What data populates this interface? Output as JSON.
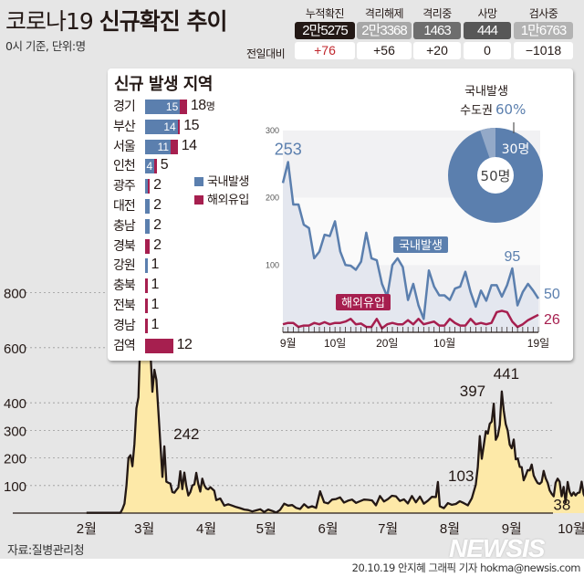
{
  "header": {
    "title_regular": "코로나19 ",
    "title_bold": "신규확진 추이",
    "subtitle": "0시 기준, 단위:명",
    "diff_label": "전일대비",
    "stats": [
      {
        "label": "누적확진",
        "value": "2만5275",
        "diff": "+76",
        "color": "#231815",
        "diff_color": "#c0272d"
      },
      {
        "label": "격리해제",
        "value": "2만3368",
        "diff": "+56",
        "color": "#a7a7a7",
        "diff_color": "#231815"
      },
      {
        "label": "격리중",
        "value": "1463",
        "diff": "+20",
        "color": "#6e6e6e",
        "diff_color": "#231815"
      },
      {
        "label": "사망",
        "value": "444",
        "diff": "0",
        "color": "#575757",
        "diff_color": "#231815"
      },
      {
        "label": "검사중",
        "value": "1만6763",
        "diff": "−1018",
        "color": "#b3b3b3",
        "diff_color": "#231815"
      }
    ]
  },
  "colors": {
    "domestic": "#5b7fae",
    "imported": "#a61f4f",
    "main_line": "#231815",
    "main_fill": "#fde9a8",
    "pie_light": "#93a9c8"
  },
  "panel": {
    "title": "신규 발생 지역",
    "legend": {
      "domestic": "국내발생",
      "imported": "해외유입"
    },
    "regions": [
      {
        "name": "경기",
        "domestic": 15,
        "imported": 3,
        "total": "18",
        "unit": "명"
      },
      {
        "name": "부산",
        "domestic": 14,
        "imported": 1,
        "total": "15",
        "unit": ""
      },
      {
        "name": "서울",
        "domestic": 11,
        "imported": 3,
        "total": "14",
        "unit": ""
      },
      {
        "name": "인천",
        "domestic": 4,
        "imported": 1,
        "total": "5",
        "unit": ""
      },
      {
        "name": "광주",
        "domestic": 1,
        "imported": 1,
        "total": "2",
        "unit": ""
      },
      {
        "name": "대전",
        "domestic": 2,
        "imported": 0,
        "total": "2",
        "unit": ""
      },
      {
        "name": "충남",
        "domestic": 2,
        "imported": 0,
        "total": "2",
        "unit": ""
      },
      {
        "name": "경북",
        "domestic": 0,
        "imported": 2,
        "total": "2",
        "unit": ""
      },
      {
        "name": "강원",
        "domestic": 1,
        "imported": 0,
        "total": "1",
        "unit": ""
      },
      {
        "name": "충북",
        "domestic": 0,
        "imported": 1,
        "total": "1",
        "unit": ""
      },
      {
        "name": "전북",
        "domestic": 0,
        "imported": 1,
        "total": "1",
        "unit": ""
      },
      {
        "name": "경남",
        "domestic": 0,
        "imported": 1,
        "total": "1",
        "unit": ""
      },
      {
        "name": "검역",
        "domestic": 0,
        "imported": 12,
        "total": "12",
        "unit": ""
      }
    ],
    "pie": {
      "title_line1": "국내발생",
      "title_line2": "수도권",
      "percent": "60%",
      "part_label": "30명",
      "total_label": "50명"
    }
  },
  "chart_data": [
    {
      "type": "line",
      "title": "",
      "x_start": "08-31",
      "x_end": "10-19",
      "ylim": [
        0,
        300
      ],
      "yticks": [
        "100",
        "200",
        "300"
      ],
      "xticks": [
        {
          "date": "09-01",
          "label": "9월"
        },
        {
          "date": "09-10",
          "label": "10일"
        },
        {
          "date": "09-20",
          "label": "20일"
        },
        {
          "date": "10-01",
          "label": "10월"
        },
        {
          "date": "10-19",
          "label": "19일"
        }
      ],
      "series": [
        {
          "name": "국내발생",
          "values": [
            222,
            253,
            190,
            190,
            160,
            155,
            110,
            120,
            145,
            143,
            165,
            120,
            100,
            99,
            93,
            105,
            148,
            110,
            107,
            72,
            53,
            100,
            110,
            97,
            48,
            72,
            40,
            20,
            92,
            68,
            55,
            55,
            48,
            65,
            68,
            90,
            60,
            38,
            62,
            47,
            70,
            70,
            53,
            70,
            95,
            40,
            60,
            72,
            62,
            50
          ]
        },
        {
          "name": "해외유입",
          "values": [
            12,
            14,
            14,
            8,
            10,
            10,
            14,
            12,
            15,
            12,
            14,
            14,
            16,
            20,
            12,
            13,
            8,
            8,
            20,
            6,
            12,
            14,
            12,
            12,
            18,
            12,
            20,
            12,
            14,
            16,
            10,
            10,
            20,
            14,
            10,
            10,
            20,
            12,
            14,
            12,
            14,
            30,
            32,
            30,
            16,
            8,
            12,
            18,
            22,
            26
          ]
        }
      ],
      "annotations": [
        {
          "series": 0,
          "date": "09-01",
          "label": "253"
        },
        {
          "series": 0,
          "date": "10-14",
          "label": "95"
        },
        {
          "series": 0,
          "date": "10-19",
          "label": "50"
        },
        {
          "series": 1,
          "date": "10-19",
          "label": "26"
        }
      ]
    },
    {
      "type": "area",
      "title": "",
      "x_start": "02-01",
      "x_end": "10-19",
      "ylim": [
        0,
        909
      ],
      "yticks": [
        "100",
        "200",
        "300",
        "400",
        "600",
        "800"
      ],
      "xticks": [
        {
          "date": "02-01",
          "label": "2월"
        },
        {
          "date": "03-01",
          "label": "3월"
        },
        {
          "date": "04-01",
          "label": "4월"
        },
        {
          "date": "05-01",
          "label": "5월"
        },
        {
          "date": "06-01",
          "label": "6월"
        },
        {
          "date": "07-01",
          "label": "7월"
        },
        {
          "date": "08-01",
          "label": "8월"
        },
        {
          "date": "09-01",
          "label": "9월"
        },
        {
          "date": "10-01",
          "label": "10월"
        }
      ],
      "points": [
        [
          "02-01",
          1
        ],
        [
          "02-10",
          1
        ],
        [
          "02-18",
          1
        ],
        [
          "02-19",
          15
        ],
        [
          "02-20",
          34
        ],
        [
          "02-21",
          100
        ],
        [
          "02-22",
          200
        ],
        [
          "02-23",
          210
        ],
        [
          "02-24",
          170
        ],
        [
          "02-25",
          250
        ],
        [
          "02-26",
          380
        ],
        [
          "02-27",
          420
        ],
        [
          "02-28",
          650
        ],
        [
          "02-29",
          909
        ],
        [
          "03-01",
          620
        ],
        [
          "03-02",
          690
        ],
        [
          "03-03",
          600
        ],
        [
          "03-04",
          590
        ],
        [
          "03-05",
          440
        ],
        [
          "03-06",
          520
        ],
        [
          "03-07",
          483
        ],
        [
          "03-08",
          367
        ],
        [
          "03-09",
          248
        ],
        [
          "03-10",
          131
        ],
        [
          "03-11",
          242
        ],
        [
          "03-12",
          114
        ],
        [
          "03-13",
          110
        ],
        [
          "03-14",
          107
        ],
        [
          "03-15",
          76
        ],
        [
          "03-16",
          74
        ],
        [
          "03-17",
          84
        ],
        [
          "03-18",
          93
        ],
        [
          "03-19",
          152
        ],
        [
          "03-20",
          87
        ],
        [
          "03-21",
          147
        ],
        [
          "03-22",
          98
        ],
        [
          "03-23",
          64
        ],
        [
          "03-24",
          76
        ],
        [
          "03-25",
          100
        ],
        [
          "03-26",
          104
        ],
        [
          "03-27",
          146
        ],
        [
          "03-28",
          105
        ],
        [
          "03-29",
          78
        ],
        [
          "03-30",
          125
        ],
        [
          "03-31",
          101
        ],
        [
          "04-01",
          89
        ],
        [
          "04-02",
          86
        ],
        [
          "04-03",
          94
        ],
        [
          "04-05",
          81
        ],
        [
          "04-06",
          47
        ],
        [
          "04-08",
          53
        ],
        [
          "04-10",
          27
        ],
        [
          "04-12",
          32
        ],
        [
          "04-14",
          27
        ],
        [
          "04-16",
          22
        ],
        [
          "04-18",
          18
        ],
        [
          "04-20",
          13
        ],
        [
          "04-22",
          11
        ],
        [
          "04-24",
          6
        ],
        [
          "04-26",
          10
        ],
        [
          "04-28",
          14
        ],
        [
          "04-30",
          4
        ],
        [
          "05-02",
          13
        ],
        [
          "05-04",
          8
        ],
        [
          "05-06",
          2
        ],
        [
          "05-08",
          12
        ],
        [
          "05-10",
          34
        ],
        [
          "05-12",
          27
        ],
        [
          "05-14",
          29
        ],
        [
          "05-16",
          19
        ],
        [
          "05-18",
          15
        ],
        [
          "05-20",
          32
        ],
        [
          "05-22",
          20
        ],
        [
          "05-24",
          25
        ],
        [
          "05-26",
          19
        ],
        [
          "05-28",
          79
        ],
        [
          "05-30",
          39
        ],
        [
          "06-01",
          35
        ],
        [
          "06-03",
          49
        ],
        [
          "06-05",
          51
        ],
        [
          "06-07",
          57
        ],
        [
          "06-09",
          38
        ],
        [
          "06-11",
          45
        ],
        [
          "06-13",
          49
        ],
        [
          "06-15",
          37
        ],
        [
          "06-17",
          43
        ],
        [
          "06-19",
          49
        ],
        [
          "06-21",
          48
        ],
        [
          "06-23",
          46
        ],
        [
          "06-25",
          28
        ],
        [
          "06-27",
          62
        ],
        [
          "06-29",
          42
        ],
        [
          "07-01",
          51
        ],
        [
          "07-03",
          63
        ],
        [
          "07-05",
          61
        ],
        [
          "07-07",
          44
        ],
        [
          "07-09",
          50
        ],
        [
          "07-11",
          35
        ],
        [
          "07-13",
          62
        ],
        [
          "07-15",
          39
        ],
        [
          "07-17",
          60
        ],
        [
          "07-19",
          34
        ],
        [
          "07-21",
          45
        ],
        [
          "07-23",
          59
        ],
        [
          "07-25",
          58
        ],
        [
          "07-26",
          113
        ],
        [
          "07-27",
          25
        ],
        [
          "07-29",
          18
        ],
        [
          "07-31",
          36
        ],
        [
          "08-02",
          30
        ],
        [
          "08-04",
          33
        ],
        [
          "08-06",
          43
        ],
        [
          "08-08",
          36
        ],
        [
          "08-10",
          28
        ],
        [
          "08-12",
          54
        ],
        [
          "08-14",
          103
        ],
        [
          "08-15",
          166
        ],
        [
          "08-16",
          279
        ],
        [
          "08-17",
          197
        ],
        [
          "08-18",
          246
        ],
        [
          "08-19",
          297
        ],
        [
          "08-20",
          288
        ],
        [
          "08-21",
          324
        ],
        [
          "08-22",
          332
        ],
        [
          "08-23",
          397
        ],
        [
          "08-24",
          266
        ],
        [
          "08-25",
          280
        ],
        [
          "08-26",
          320
        ],
        [
          "08-27",
          441
        ],
        [
          "08-28",
          371
        ],
        [
          "08-29",
          323
        ],
        [
          "08-30",
          299
        ],
        [
          "08-31",
          248
        ],
        [
          "09-01",
          235
        ],
        [
          "09-02",
          267
        ],
        [
          "09-03",
          195
        ],
        [
          "09-04",
          198
        ],
        [
          "09-05",
          168
        ],
        [
          "09-06",
          167
        ],
        [
          "09-07",
          119
        ],
        [
          "09-08",
          136
        ],
        [
          "09-09",
          156
        ],
        [
          "09-10",
          155
        ],
        [
          "09-11",
          176
        ],
        [
          "09-12",
          136
        ],
        [
          "09-13",
          121
        ],
        [
          "09-14",
          109
        ],
        [
          "09-15",
          106
        ],
        [
          "09-16",
          113
        ],
        [
          "09-17",
          153
        ],
        [
          "09-18",
          126
        ],
        [
          "09-19",
          110
        ],
        [
          "09-20",
          82
        ],
        [
          "09-21",
          70
        ],
        [
          "09-22",
          61
        ],
        [
          "09-23",
          110
        ],
        [
          "09-24",
          125
        ],
        [
          "09-25",
          114
        ],
        [
          "09-26",
          61
        ],
        [
          "09-27",
          95
        ],
        [
          "09-28",
          38
        ],
        [
          "09-29",
          113
        ],
        [
          "09-30",
          77
        ],
        [
          "10-01",
          63
        ],
        [
          "10-02",
          75
        ],
        [
          "10-03",
          64
        ],
        [
          "10-04",
          73
        ],
        [
          "10-05",
          75
        ],
        [
          "10-06",
          114
        ],
        [
          "10-07",
          69
        ],
        [
          "10-08",
          54
        ],
        [
          "10-09",
          72
        ],
        [
          "10-10",
          58
        ],
        [
          "10-11",
          98
        ],
        [
          "10-12",
          102
        ],
        [
          "10-13",
          84
        ],
        [
          "10-14",
          110
        ],
        [
          "10-15",
          47
        ],
        [
          "10-16",
          110
        ],
        [
          "10-17",
          73
        ],
        [
          "10-18",
          91
        ],
        [
          "10-19",
          76
        ]
      ],
      "annotations": [
        {
          "date": "03-11",
          "label": "242"
        },
        {
          "date": "08-14",
          "label": "103"
        },
        {
          "date": "08-23",
          "label": "397"
        },
        {
          "date": "08-27",
          "label": "441"
        },
        {
          "date": "09-28",
          "label": "38"
        },
        {
          "date": "10-16",
          "label": "110"
        },
        {
          "date": "10-19",
          "label": "76"
        }
      ]
    }
  ],
  "footer": {
    "source": "자료:질병관리청",
    "credit": "20.10.19 안지혜 그래픽 기자 hokma@newsis.com",
    "logo": "NEWSIS"
  }
}
